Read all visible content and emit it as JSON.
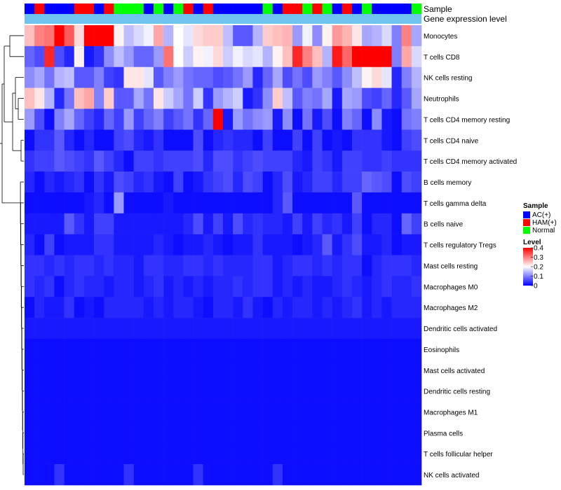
{
  "chart_data": {
    "type": "heatmap",
    "title": "",
    "annotation_rows": [
      "Sample",
      "Gene expression level"
    ],
    "rows": [
      "Monocytes",
      "T cells CD8",
      "NK cells resting",
      "Neutrophils",
      "T cells CD4 memory resting",
      "T cells CD4 naive",
      "T cells CD4 memory activated",
      "B cells memory",
      "T cells gamma delta",
      "B cells naive",
      "T cells regulatory  Tregs",
      "Mast cells resting",
      "Macrophages M0",
      "Macrophages M2",
      "Dendritic cells activated",
      "Eosinophils",
      "Mast cells activated",
      "Dendritic cells resting",
      "Macrophages M1",
      "Plasma cells",
      "T cells follicular helper",
      "NK cells activated"
    ],
    "sample_groups": [
      "AC",
      "HAM",
      "AC",
      "AC",
      "AC",
      "HAM",
      "HAM",
      "AC",
      "HAM",
      "Normal",
      "Normal",
      "Normal",
      "AC",
      "Normal",
      "AC",
      "Normal",
      "HAM",
      "AC",
      "HAM",
      "AC",
      "AC",
      "AC",
      "AC",
      "AC",
      "Normal",
      "AC",
      "HAM",
      "HAM",
      "Normal",
      "HAM",
      "Normal",
      "AC",
      "HAM",
      "AC",
      "Normal",
      "AC",
      "AC",
      "AC",
      "AC",
      "Normal"
    ],
    "values": [
      [
        0.25,
        0.3,
        0.31,
        0.4,
        0.33,
        0.23,
        0.4,
        0.4,
        0.4,
        0.21,
        0.15,
        0.17,
        0.19,
        0.27,
        0.14,
        0.2,
        0.18,
        0.23,
        0.24,
        0.24,
        0.15,
        0.07,
        0.07,
        0.14,
        0.24,
        0.25,
        0.26,
        0.12,
        0.19,
        0.11,
        0.21,
        0.28,
        0.26,
        0.22,
        0.13,
        0.14,
        0.17,
        0.1,
        0.3,
        0.13
      ],
      [
        0.08,
        0.06,
        0.37,
        0.06,
        0.03,
        0.21,
        0.02,
        0.04,
        0.11,
        0.15,
        0.12,
        0.08,
        0.08,
        0.12,
        0.31,
        0.2,
        0.16,
        0.21,
        0.19,
        0.23,
        0.16,
        0.19,
        0.17,
        0.18,
        0.14,
        0.21,
        0.25,
        0.37,
        0.3,
        0.25,
        0.14,
        0.38,
        0.32,
        0.4,
        0.4,
        0.4,
        0.4,
        0.1,
        0.27,
        0.17
      ],
      [
        0.11,
        0.13,
        0.09,
        0.14,
        0.15,
        0.07,
        0.07,
        0.1,
        0.05,
        0.04,
        0.22,
        0.22,
        0.18,
        0.07,
        0.1,
        0.12,
        0.09,
        0.08,
        0.08,
        0.06,
        0.07,
        0.09,
        0.12,
        0.03,
        0.08,
        0.13,
        0.06,
        0.09,
        0.06,
        0.12,
        0.1,
        0.07,
        0.11,
        0.15,
        0.21,
        0.23,
        0.18,
        0.03,
        0.1,
        0.14
      ],
      [
        0.25,
        0.22,
        0.14,
        0.03,
        0.09,
        0.25,
        0.27,
        0.1,
        0.24,
        0.07,
        0.07,
        0.13,
        0.09,
        0.22,
        0.16,
        0.13,
        0.09,
        0.16,
        0.04,
        0.12,
        0.14,
        0.16,
        0.02,
        0.04,
        0.11,
        0.24,
        0.15,
        0.07,
        0.1,
        0.09,
        0.13,
        0.02,
        0.13,
        0.12,
        0.06,
        0.05,
        0.08,
        0.03,
        0.07,
        0.13
      ],
      [
        0.12,
        0.06,
        0.01,
        0.1,
        0.13,
        0.08,
        0.05,
        0.03,
        0.08,
        0.05,
        0.12,
        0.05,
        0.08,
        0.1,
        0.05,
        0.07,
        0.09,
        0.04,
        0.08,
        0.4,
        0.02,
        0.12,
        0.09,
        0.11,
        0.12,
        0.02,
        0.11,
        0.01,
        0.09,
        0.02,
        0.06,
        0.01,
        0.1,
        0.08,
        0.01,
        0.11,
        0.02,
        0.01,
        0.09,
        0.1
      ],
      [
        0.01,
        0.04,
        0.04,
        0.07,
        0.03,
        0.01,
        0.03,
        0.01,
        0.01,
        0.05,
        0.06,
        0.03,
        0.02,
        0.04,
        0.01,
        0.01,
        0.01,
        0.06,
        0.01,
        0.03,
        0.04,
        0.03,
        0.03,
        0.01,
        0.05,
        0.01,
        0.01,
        0.05,
        0.01,
        0.05,
        0.01,
        0.02,
        0.01,
        0.04,
        0.04,
        0.04,
        0.02,
        0.01,
        0.05,
        0.06
      ],
      [
        0.04,
        0.05,
        0.05,
        0.07,
        0.06,
        0.05,
        0.04,
        0.07,
        0.05,
        0.03,
        0.01,
        0.05,
        0.05,
        0.04,
        0.05,
        0.05,
        0.05,
        0.06,
        0.03,
        0.06,
        0.06,
        0.04,
        0.05,
        0.06,
        0.05,
        0.05,
        0.05,
        0.03,
        0.02,
        0.05,
        0.04,
        0.02,
        0.05,
        0.05,
        0.04,
        0.04,
        0.05,
        0.04,
        0.04,
        0.04
      ],
      [
        0.03,
        0.01,
        0.03,
        0.02,
        0.03,
        0.04,
        0.01,
        0.04,
        0.02,
        0.06,
        0.05,
        0.03,
        0.04,
        0.02,
        0.01,
        0.05,
        0.01,
        0.02,
        0.04,
        0.05,
        0.06,
        0.03,
        0.06,
        0.05,
        0.01,
        0.03,
        0.06,
        0.02,
        0.03,
        0.05,
        0.05,
        0.03,
        0.05,
        0.05,
        0.08,
        0.07,
        0.06,
        0.01,
        0.06,
        0.05
      ],
      [
        0.01,
        0.01,
        0.01,
        0.01,
        0.01,
        0.01,
        0.02,
        0.03,
        0.01,
        0.12,
        0.01,
        0.01,
        0.01,
        0.01,
        0.02,
        0.01,
        0.01,
        0.01,
        0.01,
        0.01,
        0.01,
        0.01,
        0.01,
        0.01,
        0.01,
        0.03,
        0.07,
        0.01,
        0.01,
        0.01,
        0.01,
        0.01,
        0.01,
        0.07,
        0.01,
        0.01,
        0.01,
        0.01,
        0.01,
        0.01
      ],
      [
        0.02,
        0.02,
        0.02,
        0.02,
        0.07,
        0.04,
        0.02,
        0.05,
        0.05,
        0.02,
        0.02,
        0.02,
        0.02,
        0.02,
        0.02,
        0.02,
        0.03,
        0.06,
        0.02,
        0.05,
        0.02,
        0.06,
        0.03,
        0.04,
        0.03,
        0.03,
        0.02,
        0.05,
        0.02,
        0.05,
        0.03,
        0.04,
        0.02,
        0.05,
        0.01,
        0.03,
        0.03,
        0.01,
        0.08,
        0.05
      ],
      [
        0.03,
        0.01,
        0.05,
        0.01,
        0.02,
        0.02,
        0.02,
        0.04,
        0.04,
        0.02,
        0.02,
        0.02,
        0.02,
        0.03,
        0.02,
        0.01,
        0.02,
        0.02,
        0.03,
        0.02,
        0.01,
        0.02,
        0.02,
        0.04,
        0.02,
        0.02,
        0.02,
        0.01,
        0.02,
        0.03,
        0.07,
        0.02,
        0.04,
        0.06,
        0.02,
        0.02,
        0.03,
        0.01,
        0.02,
        0.02
      ],
      [
        0.04,
        0.04,
        0.03,
        0.04,
        0.03,
        0.04,
        0.04,
        0.03,
        0.04,
        0.03,
        0.03,
        0.02,
        0.04,
        0.04,
        0.03,
        0.03,
        0.04,
        0.04,
        0.03,
        0.04,
        0.03,
        0.03,
        0.03,
        0.04,
        0.04,
        0.02,
        0.03,
        0.04,
        0.04,
        0.03,
        0.04,
        0.03,
        0.04,
        0.04,
        0.01,
        0.03,
        0.04,
        0.04,
        0.04,
        0.03
      ],
      [
        0.04,
        0.03,
        0.04,
        0.01,
        0.03,
        0.04,
        0.03,
        0.03,
        0.02,
        0.03,
        0.03,
        0.02,
        0.03,
        0.04,
        0.02,
        0.03,
        0.02,
        0.03,
        0.02,
        0.03,
        0.03,
        0.04,
        0.03,
        0.04,
        0.04,
        0.02,
        0.03,
        0.02,
        0.03,
        0.02,
        0.02,
        0.03,
        0.04,
        0.03,
        0.02,
        0.03,
        0.04,
        0.03,
        0.03,
        0.04
      ],
      [
        0.01,
        0.03,
        0.02,
        0.02,
        0.04,
        0.01,
        0.02,
        0.01,
        0.03,
        0.03,
        0.03,
        0.03,
        0.02,
        0.03,
        0.02,
        0.03,
        0.03,
        0.02,
        0.01,
        0.03,
        0.03,
        0.02,
        0.04,
        0.02,
        0.01,
        0.03,
        0.02,
        0.03,
        0.03,
        0.02,
        0.03,
        0.02,
        0.03,
        0.04,
        0.02,
        0.03,
        0.02,
        0.03,
        0.03,
        0.03
      ],
      [
        0.02,
        0.02,
        0.02,
        0.02,
        0.02,
        0.02,
        0.02,
        0.02,
        0.02,
        0.02,
        0.02,
        0.02,
        0.02,
        0.02,
        0.02,
        0.02,
        0.02,
        0.02,
        0.02,
        0.02,
        0.02,
        0.02,
        0.02,
        0.02,
        0.02,
        0.02,
        0.02,
        0.02,
        0.02,
        0.02,
        0.02,
        0.02,
        0.02,
        0.02,
        0.02,
        0.02,
        0.02,
        0.02,
        0.02,
        0.02
      ],
      [
        0.01,
        0.01,
        0.01,
        0.01,
        0.01,
        0.01,
        0.01,
        0.01,
        0.01,
        0.01,
        0.01,
        0.01,
        0.01,
        0.01,
        0.01,
        0.01,
        0.01,
        0.01,
        0.01,
        0.01,
        0.01,
        0.01,
        0.01,
        0.01,
        0.01,
        0.01,
        0.01,
        0.01,
        0.01,
        0.01,
        0.01,
        0.01,
        0.01,
        0.01,
        0.01,
        0.01,
        0.01,
        0.01,
        0.01,
        0.01
      ],
      [
        0.01,
        0.01,
        0.01,
        0.01,
        0.01,
        0.01,
        0.01,
        0.01,
        0.01,
        0.01,
        0.01,
        0.01,
        0.01,
        0.01,
        0.01,
        0.01,
        0.01,
        0.01,
        0.01,
        0.01,
        0.01,
        0.01,
        0.01,
        0.01,
        0.01,
        0.01,
        0.01,
        0.01,
        0.01,
        0.01,
        0.01,
        0.01,
        0.01,
        0.01,
        0.01,
        0.01,
        0.01,
        0.01,
        0.01,
        0.01
      ],
      [
        0.01,
        0.01,
        0.01,
        0.01,
        0.01,
        0.01,
        0.01,
        0.01,
        0.01,
        0.01,
        0.01,
        0.01,
        0.01,
        0.01,
        0.01,
        0.01,
        0.01,
        0.01,
        0.01,
        0.01,
        0.01,
        0.01,
        0.01,
        0.01,
        0.01,
        0.01,
        0.01,
        0.01,
        0.01,
        0.01,
        0.01,
        0.01,
        0.01,
        0.01,
        0.01,
        0.01,
        0.01,
        0.01,
        0.01,
        0.01
      ],
      [
        0.01,
        0.01,
        0.01,
        0.01,
        0.01,
        0.01,
        0.01,
        0.01,
        0.01,
        0.01,
        0.01,
        0.01,
        0.01,
        0.01,
        0.01,
        0.01,
        0.01,
        0.01,
        0.01,
        0.01,
        0.01,
        0.01,
        0.01,
        0.01,
        0.01,
        0.01,
        0.01,
        0.01,
        0.01,
        0.01,
        0.01,
        0.01,
        0.01,
        0.01,
        0.01,
        0.01,
        0.01,
        0.01,
        0.01,
        0.01
      ],
      [
        0.01,
        0.01,
        0.01,
        0.01,
        0.01,
        0.01,
        0.01,
        0.01,
        0.01,
        0.01,
        0.01,
        0.01,
        0.01,
        0.01,
        0.01,
        0.01,
        0.01,
        0.01,
        0.01,
        0.01,
        0.01,
        0.01,
        0.01,
        0.01,
        0.01,
        0.01,
        0.01,
        0.01,
        0.01,
        0.01,
        0.01,
        0.01,
        0.01,
        0.01,
        0.01,
        0.01,
        0.01,
        0.01,
        0.01,
        0.01
      ],
      [
        0.01,
        0.01,
        0.01,
        0.01,
        0.01,
        0.01,
        0.01,
        0.01,
        0.01,
        0.01,
        0.01,
        0.01,
        0.01,
        0.01,
        0.01,
        0.01,
        0.01,
        0.01,
        0.01,
        0.01,
        0.01,
        0.01,
        0.01,
        0.01,
        0.01,
        0.01,
        0.01,
        0.01,
        0.01,
        0.01,
        0.01,
        0.01,
        0.01,
        0.01,
        0.01,
        0.01,
        0.01,
        0.01,
        0.01,
        0.01
      ],
      [
        0.01,
        0.01,
        0.01,
        0.04,
        0.01,
        0.01,
        0.01,
        0.01,
        0.01,
        0.01,
        0.04,
        0.01,
        0.01,
        0.01,
        0.01,
        0.01,
        0.01,
        0.04,
        0.01,
        0.01,
        0.01,
        0.01,
        0.01,
        0.01,
        0.01,
        0.04,
        0.01,
        0.01,
        0.01,
        0.01,
        0.01,
        0.01,
        0.01,
        0.01,
        0.01,
        0.01,
        0.01,
        0.01,
        0.01,
        0.01
      ]
    ],
    "color_scale": {
      "min": 0,
      "mid": 0.2,
      "max": 0.4,
      "low": "#0000ff",
      "midColor": "#ffffff",
      "high": "#ff0000"
    },
    "legend": {
      "sample_title": "Sample",
      "sample_entries": [
        {
          "label": "AC(+)",
          "key": "AC",
          "color": "#0000ff"
        },
        {
          "label": "HAM(+)",
          "key": "HAM",
          "color": "#ff0000"
        },
        {
          "label": "Normal",
          "key": "Normal",
          "color": "#00ff00"
        }
      ],
      "level_title": "Level",
      "level_ticks": [
        "0.4",
        "0.3",
        "0.2",
        "0.1",
        "0"
      ],
      "placement": "right"
    },
    "expression_bar_color": "#6ec4ee"
  }
}
